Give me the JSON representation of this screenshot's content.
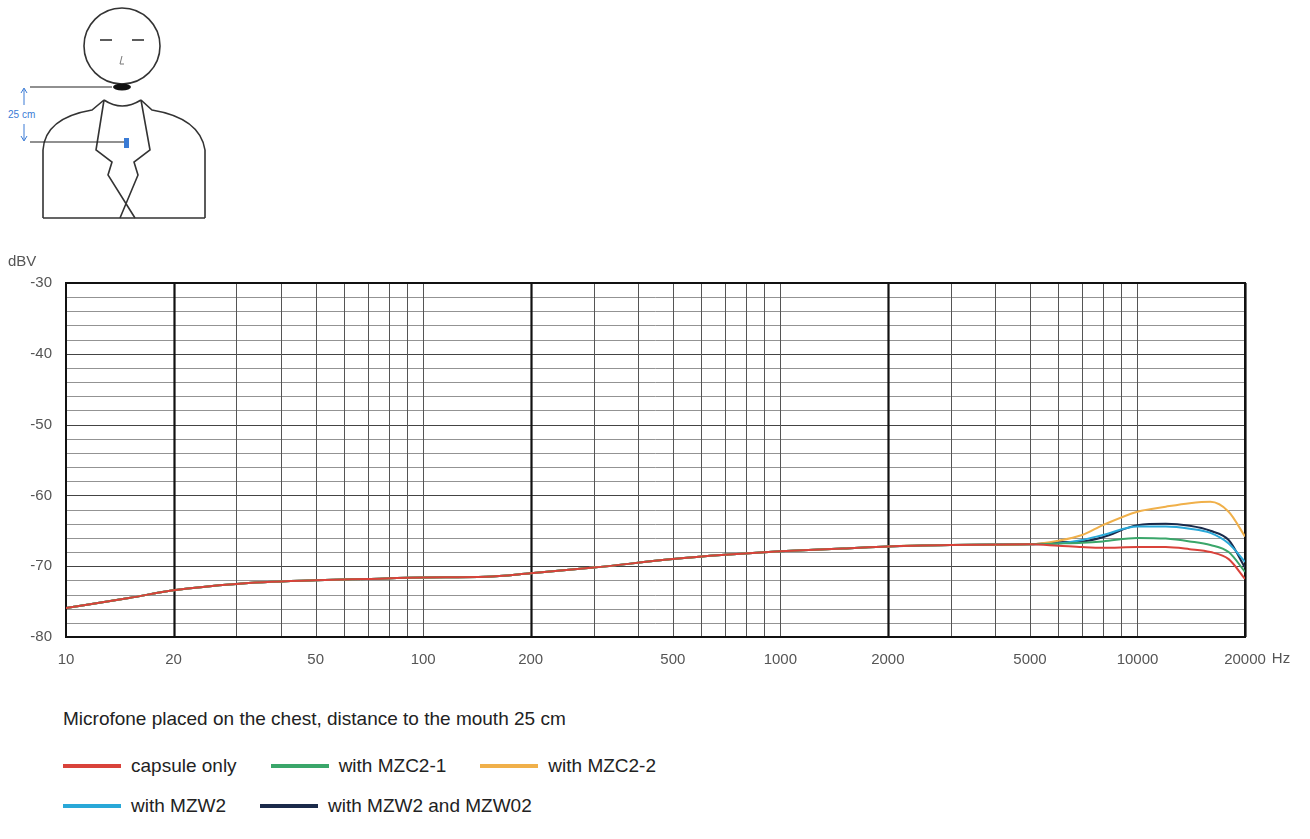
{
  "chart_data": {
    "type": "line",
    "caption": "Microfone placed on the chest, distance to the mouth 25 cm",
    "annotation": "25 cm",
    "x_label": "Hz",
    "y_label": "dBV",
    "log": "x",
    "grid": true,
    "legend": "bottom",
    "x": [
      10,
      15,
      20,
      30,
      50,
      70,
      100,
      150,
      200,
      300,
      500,
      700,
      1000,
      1500,
      2000,
      3000,
      5000,
      6000,
      7000,
      8000,
      10000,
      12000,
      14000,
      16000,
      18000,
      20000
    ],
    "xlim": [
      10,
      20000
    ],
    "xticks": [
      10,
      20,
      50,
      100,
      200,
      500,
      1000,
      2000,
      5000,
      10000,
      20000
    ],
    "ylim": [
      -80,
      -30
    ],
    "yticks": [
      -80,
      -70,
      -60,
      -50,
      -40,
      -30
    ],
    "series": [
      {
        "name": "capsule only",
        "color": "#d9423a",
        "values": [
          -75.9,
          -74.5,
          -73.4,
          -72.5,
          -72,
          -71.8,
          -71.6,
          -71.5,
          -71,
          -70.2,
          -69,
          -68.4,
          -67.9,
          -67.5,
          -67.2,
          -67,
          -66.9,
          -67.1,
          -67.3,
          -67.4,
          -67.3,
          -67.3,
          -67.6,
          -68,
          -69,
          -71.8
        ]
      },
      {
        "name": "with MZC2-1",
        "color": "#3aa66a",
        "values": [
          -75.9,
          -74.5,
          -73.4,
          -72.5,
          -72,
          -71.8,
          -71.6,
          -71.5,
          -71,
          -70.2,
          -69,
          -68.4,
          -67.9,
          -67.5,
          -67.2,
          -67,
          -66.9,
          -66.8,
          -66.7,
          -66.5,
          -66,
          -66.1,
          -66.5,
          -67,
          -68,
          -70.8
        ]
      },
      {
        "name": "with MZC2-2",
        "color": "#f0b04a",
        "values": [
          -75.9,
          -74.5,
          -73.4,
          -72.5,
          -72,
          -71.8,
          -71.6,
          -71.5,
          -71,
          -70.2,
          -69,
          -68.4,
          -67.9,
          -67.5,
          -67.2,
          -67,
          -66.9,
          -66.4,
          -65.6,
          -64.2,
          -62.3,
          -61.6,
          -61.1,
          -60.9,
          -62.3,
          -65.8
        ]
      },
      {
        "name": "with MZW2",
        "color": "#29a8d8",
        "values": [
          -75.9,
          -74.5,
          -73.4,
          -72.5,
          -72,
          -71.8,
          -71.6,
          -71.5,
          -71,
          -70.2,
          -69,
          -68.4,
          -67.9,
          -67.5,
          -67.2,
          -67,
          -66.9,
          -66.8,
          -66.3,
          -65.6,
          -64.4,
          -64.4,
          -64.7,
          -65.3,
          -66.8,
          -69.4
        ]
      },
      {
        "name": "with MZW2 and MZW02",
        "color": "#1a2a4a",
        "values": [
          -75.9,
          -74.5,
          -73.4,
          -72.5,
          -72,
          -71.8,
          -71.6,
          -71.5,
          -71,
          -70.2,
          -69,
          -68.4,
          -67.9,
          -67.5,
          -67.2,
          -67,
          -66.9,
          -66.6,
          -66.5,
          -65.9,
          -64.2,
          -64,
          -64.3,
          -65,
          -66.3,
          -70.2
        ]
      }
    ]
  }
}
